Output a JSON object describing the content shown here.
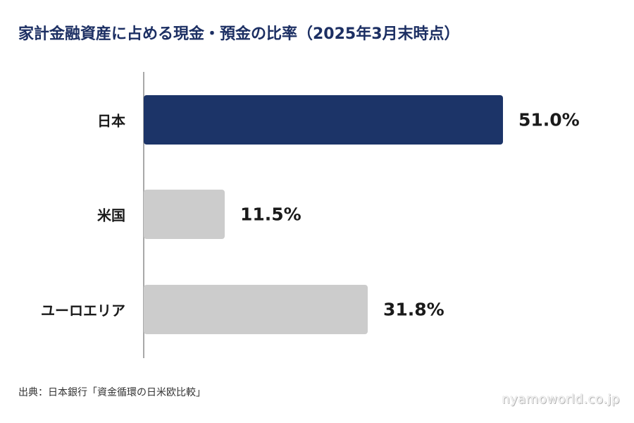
{
  "chart_data": {
    "type": "bar",
    "orientation": "horizontal",
    "title": "家計金融資産に占める現金・預金の比率（2025年3月末時点）",
    "categories": [
      "日本",
      "米国",
      "ユーロエリア"
    ],
    "values": [
      51.0,
      11.5,
      31.8
    ],
    "value_labels": [
      "51.0%",
      "11.5%",
      "31.8%"
    ],
    "unit": "%",
    "xlim": [
      0,
      62
    ],
    "grid": false,
    "colors": [
      "#1c3468",
      "#cccccc",
      "#cccccc"
    ]
  },
  "source": "出典：日本銀行「資金循環の日米欧比較」",
  "watermark": "nyamoworld.co.jp"
}
